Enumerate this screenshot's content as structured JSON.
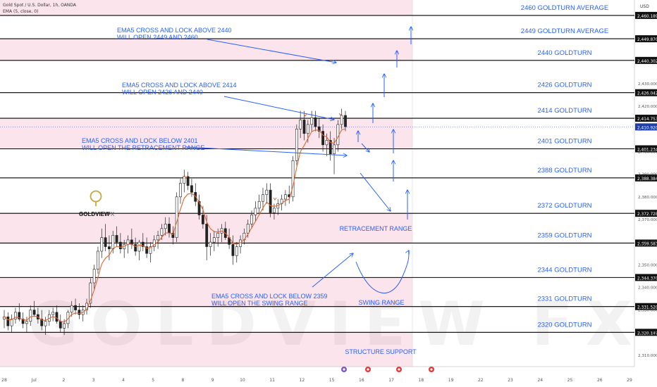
{
  "header": {
    "symbol_line": "Gold Spot / U.S. Dollar, 1h, OANDA",
    "indicator_line": "EMA (5, close, 0)",
    "currency": "USD"
  },
  "logo": {
    "text_main": "GOLDVIEW",
    "text_suffix": "FX",
    "watermark": "GOLDVIEW FX"
  },
  "colors": {
    "zone_pink": "#fce4ec",
    "annotation_blue": "#2962ff",
    "level_line": "#000000",
    "candle_up": "#000000",
    "candle_down": "#000000",
    "ema_line": "#e0662e",
    "current_price_badge": "#1e3fa8",
    "logo_gold": "#c9a544"
  },
  "chart_data": {
    "type": "candlestick",
    "y_axis": {
      "min": 2305,
      "max": 2467,
      "side": "right"
    },
    "x_axis": {
      "tick_labels": [
        "28",
        "Jul",
        "2",
        "3",
        "4",
        "5",
        "8",
        "9",
        "10",
        "11",
        "12",
        "15",
        "16",
        "17",
        "18",
        "19",
        "22",
        "23",
        "24",
        "25",
        "26",
        "29"
      ],
      "tick_label_display": [
        "28",
        "Jul",
        "2",
        "3",
        "4",
        "5",
        "8",
        "9",
        "10",
        "11",
        "12",
        "15",
        "16",
        "17",
        "18",
        "19",
        "22",
        "23",
        "24",
        "25",
        "26",
        "29"
      ]
    },
    "price_ticks": [
      2310,
      2320,
      2330,
      2340,
      2350,
      2360,
      2370,
      2380,
      2390,
      2400,
      2410,
      2420,
      2430
    ],
    "price_tick_labels": [
      "2,310.000",
      "2,320.000",
      "2,330.000",
      "2,340.000",
      "2,350.000",
      "2,360.000",
      "2,370.000",
      "2,380.000",
      "2,390.000",
      "2,400.000",
      "2,410.000",
      "2,420.000",
      "2,430.000"
    ],
    "levels": [
      {
        "price": 2460.189,
        "label": "2460 GOLDTURN AVERAGE",
        "badge": "2,460.189"
      },
      {
        "price": 2449.87,
        "label": "2449 GOLDTURN AVERAGE",
        "badge": "2,449.870"
      },
      {
        "price": 2440.302,
        "label": "2440 GOLDTURN",
        "badge": "2,440.302"
      },
      {
        "price": 2426.042,
        "label": "2426 GOLDTURN",
        "badge": "2,426.042"
      },
      {
        "price": 2414.753,
        "label": "2414 GOLDTURN",
        "badge": "2,414.753"
      },
      {
        "price": 2401.234,
        "label": "2401 GOLDTURN",
        "badge": "2,401.234"
      },
      {
        "price": 2388.384,
        "label": "2388 GOLDTURN",
        "badge": "2,388.384"
      },
      {
        "price": 2372.728,
        "label": "2372 GOLDTURN",
        "badge": "2,372.728"
      },
      {
        "price": 2359.583,
        "label": "2359 GOLDTURN",
        "badge": "2,359.583"
      },
      {
        "price": 2344.37,
        "label": "2344 GOLDTURN",
        "badge": "2,344.370"
      },
      {
        "price": 2331.52,
        "label": "2331 GOLDTURN",
        "badge": "2,331.520"
      },
      {
        "price": 2320.147,
        "label": "2320 GOLDTURN",
        "badge": "2,320.147"
      }
    ],
    "current_price": {
      "value": 2410.92,
      "badge": "2,410.920"
    },
    "pink_zones": [
      {
        "from": 2460.189,
        "to": 2467
      },
      {
        "from": 2440.302,
        "to": 2449.87
      },
      {
        "from": 2401.234,
        "to": 2414.753
      },
      {
        "from": 2359.583,
        "to": 2372.728
      },
      {
        "from": 2331.52,
        "to": 2344.37
      },
      {
        "from": 2305,
        "to": 2320.147
      }
    ],
    "annotations": [
      {
        "lines": [
          "EMA5 CROSS AND LOCK ABOVE 2440",
          "WILL OPEN 2449 AND 2460"
        ]
      },
      {
        "lines": [
          "EMA5 CROSS AND LOCK ABOVE 2414",
          "WILL OPEN 2426 AND 2440"
        ]
      },
      {
        "lines": [
          "EMA5 CROSS AND LOCK BELOW 2401",
          "WILL OPEN THE RETRACEMENT RANGE"
        ]
      },
      {
        "lines": [
          "EMA5 CROSS AND LOCK BELOW 2359",
          "WILL OPEN THE SWING RANGE"
        ]
      }
    ],
    "zone_labels": [
      "RETRACEMENT RANGE",
      "SWING RANGE",
      "STRUCTURE SUPPORT"
    ],
    "candles_ohlc": [
      [
        2326,
        2330,
        2322,
        2327
      ],
      [
        2327,
        2329,
        2321,
        2323
      ],
      [
        2323,
        2328,
        2320,
        2326
      ],
      [
        2326,
        2331,
        2324,
        2329
      ],
      [
        2329,
        2333,
        2325,
        2326
      ],
      [
        2326,
        2329,
        2322,
        2324
      ],
      [
        2324,
        2327,
        2320,
        2325
      ],
      [
        2325,
        2332,
        2323,
        2330
      ],
      [
        2330,
        2334,
        2327,
        2328
      ],
      [
        2328,
        2331,
        2324,
        2326
      ],
      [
        2326,
        2330,
        2321,
        2323
      ],
      [
        2323,
        2327,
        2319,
        2325
      ],
      [
        2325,
        2330,
        2323,
        2328
      ],
      [
        2328,
        2331,
        2325,
        2329
      ],
      [
        2329,
        2332,
        2324,
        2325
      ],
      [
        2325,
        2328,
        2320,
        2322
      ],
      [
        2322,
        2326,
        2319,
        2324
      ],
      [
        2324,
        2330,
        2322,
        2329
      ],
      [
        2329,
        2334,
        2327,
        2332
      ],
      [
        2332,
        2335,
        2328,
        2330
      ],
      [
        2330,
        2333,
        2326,
        2328
      ],
      [
        2328,
        2332,
        2325,
        2330
      ],
      [
        2330,
        2335,
        2328,
        2333
      ],
      [
        2333,
        2344,
        2331,
        2342
      ],
      [
        2342,
        2350,
        2339,
        2348
      ],
      [
        2348,
        2358,
        2346,
        2356
      ],
      [
        2356,
        2366,
        2353,
        2362
      ],
      [
        2362,
        2368,
        2356,
        2358
      ],
      [
        2358,
        2363,
        2352,
        2357
      ],
      [
        2357,
        2365,
        2355,
        2363
      ],
      [
        2363,
        2367,
        2358,
        2360
      ],
      [
        2360,
        2364,
        2355,
        2357
      ],
      [
        2357,
        2361,
        2353,
        2359
      ],
      [
        2359,
        2363,
        2355,
        2361
      ],
      [
        2361,
        2366,
        2357,
        2359
      ],
      [
        2359,
        2362,
        2354,
        2356
      ],
      [
        2356,
        2361,
        2352,
        2360
      ],
      [
        2360,
        2364,
        2356,
        2358
      ],
      [
        2358,
        2362,
        2353,
        2355
      ],
      [
        2355,
        2360,
        2351,
        2358
      ],
      [
        2358,
        2363,
        2356,
        2361
      ],
      [
        2361,
        2365,
        2357,
        2363
      ],
      [
        2363,
        2368,
        2361,
        2366
      ],
      [
        2366,
        2371,
        2363,
        2368
      ],
      [
        2368,
        2371,
        2362,
        2364
      ],
      [
        2364,
        2367,
        2359,
        2362
      ],
      [
        2362,
        2382,
        2360,
        2380
      ],
      [
        2380,
        2388,
        2377,
        2386
      ],
      [
        2386,
        2392,
        2382,
        2389
      ],
      [
        2389,
        2391,
        2383,
        2385
      ],
      [
        2385,
        2388,
        2380,
        2382
      ],
      [
        2382,
        2386,
        2376,
        2378
      ],
      [
        2378,
        2381,
        2370,
        2372
      ],
      [
        2372,
        2376,
        2366,
        2368
      ],
      [
        2368,
        2372,
        2352,
        2358
      ],
      [
        2358,
        2364,
        2354,
        2360
      ],
      [
        2360,
        2365,
        2356,
        2362
      ],
      [
        2362,
        2366,
        2358,
        2364
      ],
      [
        2364,
        2368,
        2360,
        2366
      ],
      [
        2366,
        2369,
        2361,
        2362
      ],
      [
        2362,
        2366,
        2357,
        2359
      ],
      [
        2359,
        2363,
        2350,
        2354
      ],
      [
        2354,
        2360,
        2351,
        2358
      ],
      [
        2358,
        2363,
        2355,
        2361
      ],
      [
        2361,
        2366,
        2359,
        2364
      ],
      [
        2364,
        2370,
        2362,
        2368
      ],
      [
        2368,
        2374,
        2366,
        2372
      ],
      [
        2372,
        2378,
        2369,
        2375
      ],
      [
        2375,
        2381,
        2372,
        2378
      ],
      [
        2378,
        2384,
        2374,
        2381
      ],
      [
        2381,
        2386,
        2377,
        2383
      ],
      [
        2383,
        2386,
        2371,
        2373
      ],
      [
        2373,
        2377,
        2370,
        2375
      ],
      [
        2375,
        2379,
        2372,
        2377
      ],
      [
        2377,
        2381,
        2374,
        2379
      ],
      [
        2379,
        2383,
        2376,
        2381
      ],
      [
        2381,
        2385,
        2377,
        2380
      ],
      [
        2380,
        2398,
        2378,
        2396
      ],
      [
        2396,
        2412,
        2394,
        2410
      ],
      [
        2410,
        2418,
        2406,
        2414
      ],
      [
        2414,
        2418,
        2405,
        2408
      ],
      [
        2408,
        2414,
        2404,
        2412
      ],
      [
        2412,
        2418,
        2409,
        2415
      ],
      [
        2415,
        2418,
        2409,
        2411
      ],
      [
        2411,
        2415,
        2406,
        2409
      ],
      [
        2409,
        2412,
        2400,
        2403
      ],
      [
        2403,
        2408,
        2398,
        2405
      ],
      [
        2405,
        2409,
        2396,
        2399
      ],
      [
        2399,
        2406,
        2390,
        2403
      ],
      [
        2403,
        2414,
        2400,
        2412
      ],
      [
        2412,
        2419,
        2410,
        2416
      ],
      [
        2416,
        2418,
        2409,
        2411
      ]
    ]
  }
}
